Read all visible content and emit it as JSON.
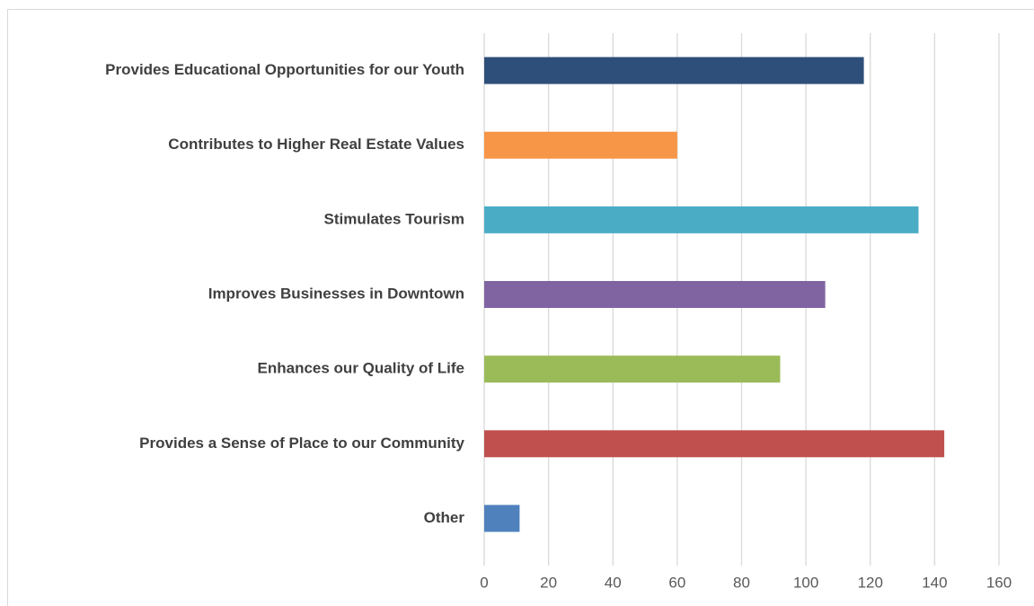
{
  "chart_data": {
    "type": "bar",
    "orientation": "horizontal",
    "categories": [
      "Provides Educational Opportunities for our Youth",
      "Contributes to Higher Real Estate Values",
      "Stimulates Tourism",
      "Improves Businesses in Downtown",
      "Enhances our Quality of Life",
      "Provides a Sense of Place to our Community",
      "Other"
    ],
    "values": [
      118,
      60,
      135,
      106,
      92,
      143,
      11
    ],
    "colors": [
      "#2e4f79",
      "#f79646",
      "#4bacc6",
      "#8064a2",
      "#9bbb59",
      "#c0504d",
      "#4f81bd"
    ],
    "xlim": [
      0,
      160
    ],
    "xticks": [
      0,
      20,
      40,
      60,
      80,
      100,
      120,
      140,
      160
    ],
    "grid": true
  }
}
